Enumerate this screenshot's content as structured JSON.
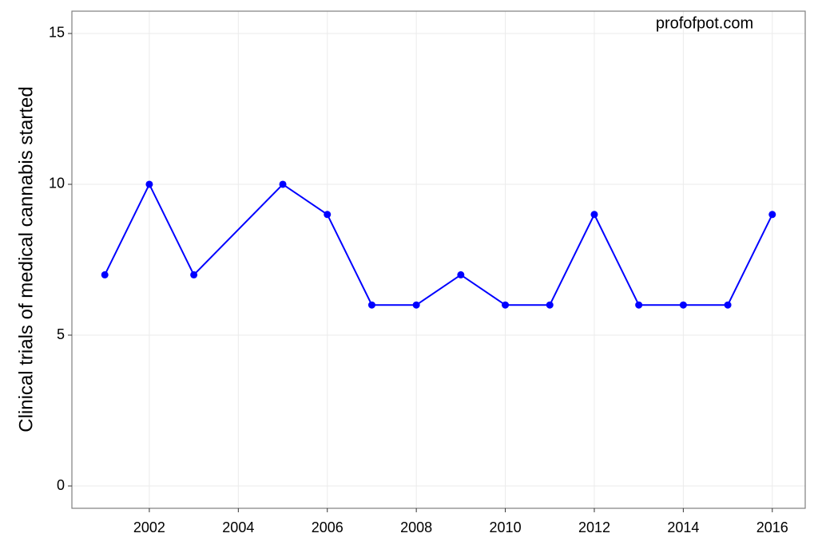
{
  "chart_data": {
    "type": "line",
    "y_label": "Clinical trials of medical cannabis started",
    "annotation": "profofpot.com",
    "x": [
      2001,
      2002,
      2003,
      2005,
      2006,
      2007,
      2008,
      2009,
      2010,
      2011,
      2012,
      2013,
      2014,
      2015,
      2016
    ],
    "series": [
      {
        "name": "trials",
        "color": "#0000ff",
        "values": [
          7,
          10,
          7,
          10,
          9,
          6,
          6,
          7,
          6,
          6,
          9,
          6,
          6,
          6,
          9
        ]
      }
    ],
    "xlim": [
      2000.26,
      2016.74
    ],
    "xticks": [
      2002,
      2004,
      2006,
      2008,
      2010,
      2012,
      2014,
      2016
    ],
    "ylim": [
      -0.74,
      15.74
    ],
    "yticks": [
      0,
      5,
      10,
      15
    ],
    "grid": true
  }
}
